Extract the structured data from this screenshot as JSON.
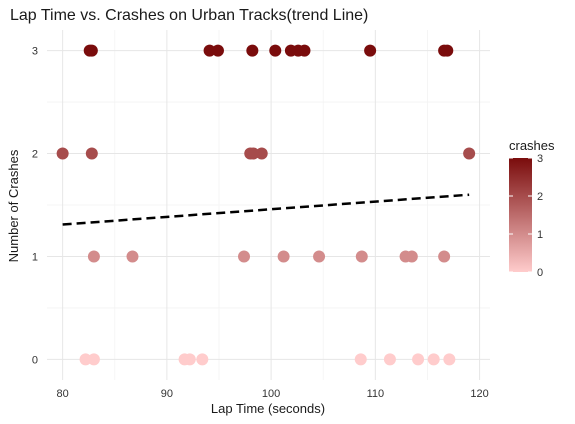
{
  "chart_data": {
    "type": "scatter",
    "title": "Lap Time vs. Crashes on Urban Tracks(trend Line)",
    "xlabel": "Lap Time (seconds)",
    "ylabel": "Number of Crashes",
    "xlim": [
      78.5,
      121
    ],
    "ylim": [
      -0.2,
      3.2
    ],
    "x_ticks": [
      80,
      90,
      100,
      110,
      120
    ],
    "y_ticks": [
      0,
      1,
      2,
      3
    ],
    "grid": true,
    "legend": {
      "title": "crashes",
      "position": "right",
      "ticks": [
        0,
        1,
        2,
        3
      ],
      "color_low": "#ffcccc",
      "color_high": "#7a0c0c"
    },
    "points": [
      {
        "x": 82.6,
        "y": 3
      },
      {
        "x": 82.8,
        "y": 3
      },
      {
        "x": 94.1,
        "y": 3
      },
      {
        "x": 94.9,
        "y": 3
      },
      {
        "x": 98.2,
        "y": 3
      },
      {
        "x": 100.4,
        "y": 3
      },
      {
        "x": 101.9,
        "y": 3
      },
      {
        "x": 102.6,
        "y": 3
      },
      {
        "x": 103.2,
        "y": 3
      },
      {
        "x": 109.5,
        "y": 3
      },
      {
        "x": 116.6,
        "y": 3
      },
      {
        "x": 116.9,
        "y": 3
      },
      {
        "x": 80.0,
        "y": 2
      },
      {
        "x": 82.8,
        "y": 2
      },
      {
        "x": 98.0,
        "y": 2
      },
      {
        "x": 98.3,
        "y": 2
      },
      {
        "x": 99.1,
        "y": 2
      },
      {
        "x": 119.0,
        "y": 2
      },
      {
        "x": 83.0,
        "y": 1
      },
      {
        "x": 86.7,
        "y": 1
      },
      {
        "x": 97.4,
        "y": 1
      },
      {
        "x": 101.2,
        "y": 1
      },
      {
        "x": 104.6,
        "y": 1
      },
      {
        "x": 108.7,
        "y": 1
      },
      {
        "x": 112.9,
        "y": 1
      },
      {
        "x": 113.5,
        "y": 1
      },
      {
        "x": 116.6,
        "y": 1
      },
      {
        "x": 82.2,
        "y": 0
      },
      {
        "x": 83.0,
        "y": 0
      },
      {
        "x": 91.7,
        "y": 0
      },
      {
        "x": 92.2,
        "y": 0
      },
      {
        "x": 93.4,
        "y": 0
      },
      {
        "x": 108.6,
        "y": 0
      },
      {
        "x": 111.4,
        "y": 0
      },
      {
        "x": 114.1,
        "y": 0
      },
      {
        "x": 115.6,
        "y": 0
      },
      {
        "x": 117.1,
        "y": 0
      }
    ],
    "trend_line": {
      "x": [
        80,
        119
      ],
      "y": [
        1.31,
        1.6
      ],
      "color": "#000000",
      "style": "dashed"
    }
  }
}
